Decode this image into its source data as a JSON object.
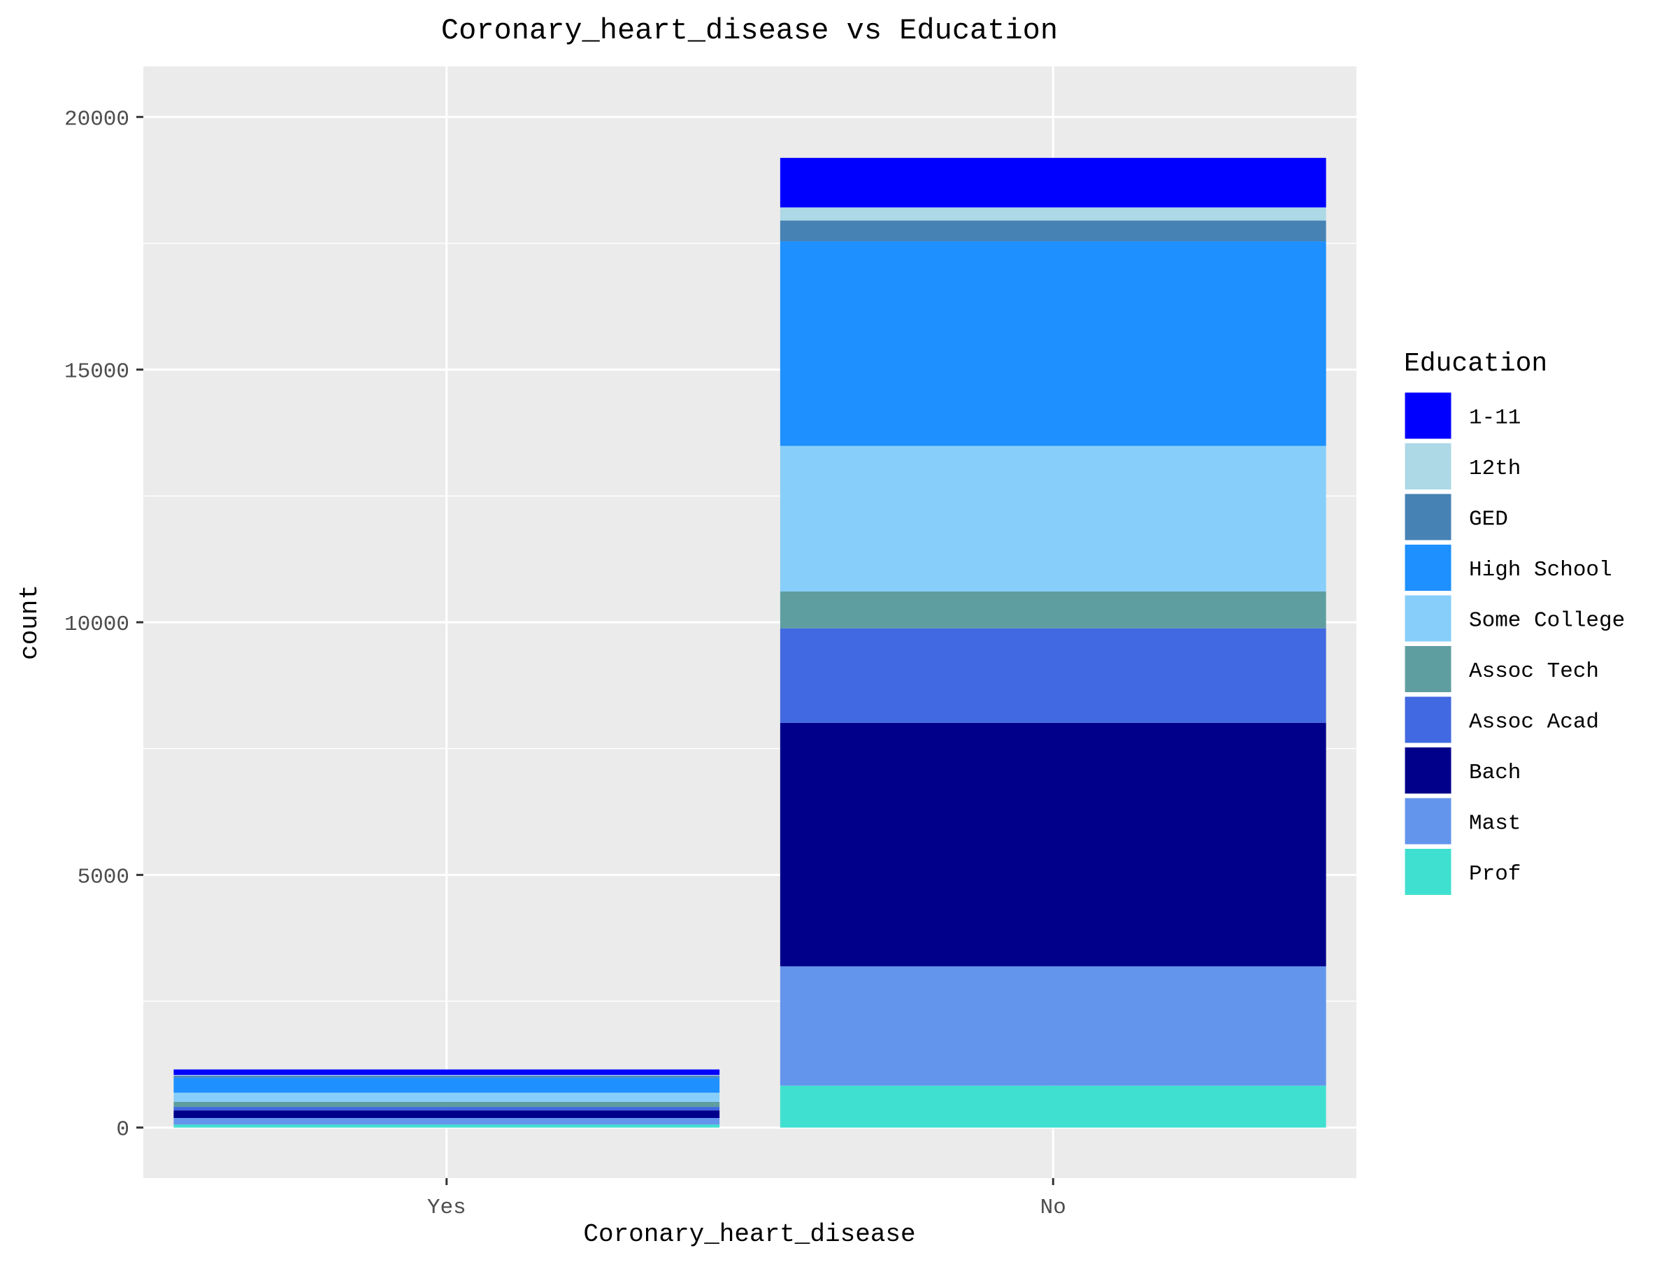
{
  "chart_data": {
    "type": "bar",
    "stacked": true,
    "title": "Coronary_heart_disease vs Education",
    "xlabel": "Coronary_heart_disease",
    "ylabel": "count",
    "categories": [
      "Yes",
      "No"
    ],
    "ylim": [
      -1000,
      21000
    ],
    "y_ticks": [
      "0",
      "5000",
      "10000",
      "15000",
      "20000"
    ],
    "y_tick_values": [
      0,
      5000,
      10000,
      15000,
      20000
    ],
    "grid": true,
    "legend": {
      "title": "Education",
      "placement": "right"
    },
    "series": [
      {
        "name": "Prof",
        "color": "#40E0D0",
        "values": [
          60,
          830
        ]
      },
      {
        "name": "Mast",
        "color": "#6495ED",
        "values": [
          130,
          2360
        ]
      },
      {
        "name": "Bach",
        "color": "#00008B",
        "values": [
          150,
          4820
        ]
      },
      {
        "name": "Assoc Acad",
        "color": "#4169E1",
        "values": [
          70,
          1870
        ]
      },
      {
        "name": "Assoc Tech",
        "color": "#5F9EA0",
        "values": [
          100,
          730
        ]
      },
      {
        "name": "Some College",
        "color": "#87CEFA",
        "values": [
          180,
          2880
        ]
      },
      {
        "name": "High School",
        "color": "#1E90FF",
        "values": [
          300,
          4050
        ]
      },
      {
        "name": "GED",
        "color": "#4682B4",
        "values": [
          30,
          410
        ]
      },
      {
        "name": "12th",
        "color": "#ADD8E6",
        "values": [
          20,
          260
        ]
      },
      {
        "name": "1-11",
        "color": "#0000FF",
        "values": [
          110,
          980
        ]
      }
    ],
    "legend_order": [
      "1-11",
      "12th",
      "GED",
      "High School",
      "Some College",
      "Assoc Tech",
      "Assoc Acad",
      "Bach",
      "Mast",
      "Prof"
    ]
  }
}
